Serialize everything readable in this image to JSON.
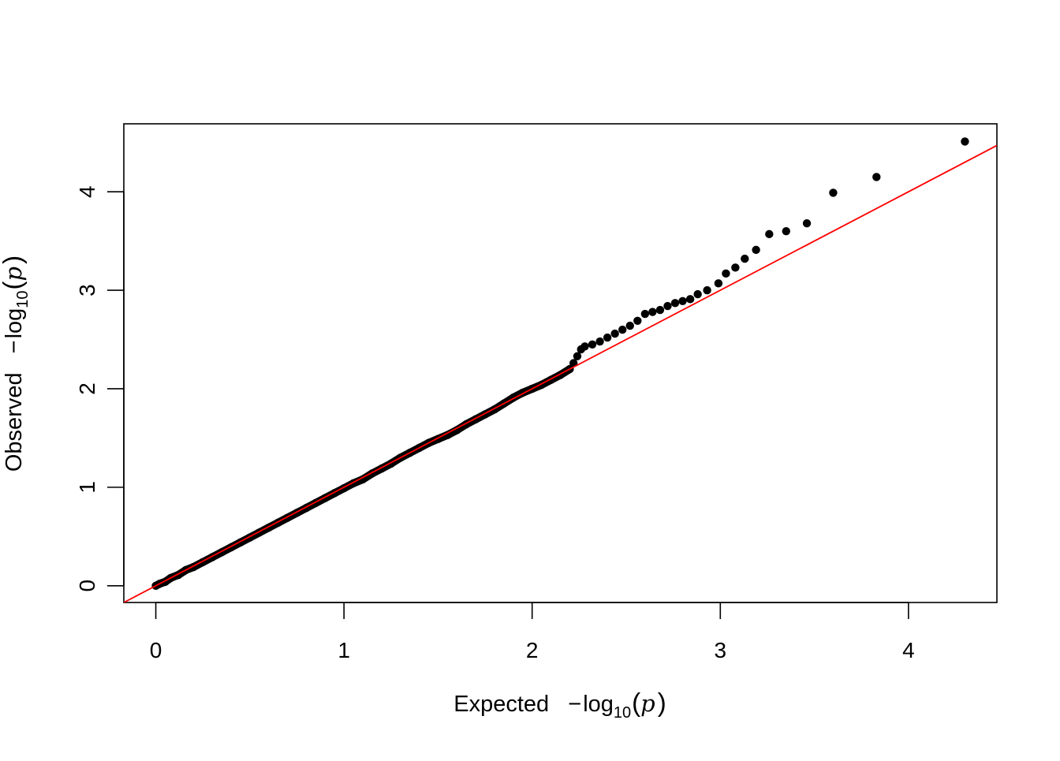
{
  "chart_data": {
    "type": "scatter",
    "title": "",
    "xlabel": {
      "prefix": "Expected",
      "minus": "−",
      "log": "log",
      "sub": "10",
      "open": "(",
      "var": "p",
      "close": ")"
    },
    "ylabel": {
      "prefix": "Observed",
      "minus": "−",
      "log": "log",
      "sub": "10",
      "open": "(",
      "var": "p",
      "close": ")"
    },
    "xlim": [
      -0.17,
      4.47
    ],
    "ylim": [
      -0.17,
      4.69
    ],
    "xticks": [
      0,
      1,
      2,
      3,
      4
    ],
    "yticks": [
      0,
      1,
      2,
      3,
      4
    ],
    "xtick_labels": [
      "0",
      "1",
      "2",
      "3",
      "4"
    ],
    "ytick_labels": [
      "0",
      "1",
      "2",
      "3",
      "4"
    ],
    "grid": false,
    "legend": "none",
    "reference_line": {
      "slope": 1,
      "intercept": 0,
      "color": "#ff0000"
    },
    "point_color": "#000000",
    "series": [
      {
        "points": [
          [
            0.0,
            0.0
          ],
          [
            0.02,
            0.02
          ],
          [
            0.05,
            0.04
          ],
          [
            0.08,
            0.08
          ],
          [
            0.12,
            0.11
          ],
          [
            0.16,
            0.16
          ],
          [
            0.2,
            0.19
          ],
          [
            0.25,
            0.24
          ],
          [
            0.3,
            0.29
          ],
          [
            0.35,
            0.34
          ],
          [
            0.4,
            0.39
          ],
          [
            0.45,
            0.44
          ],
          [
            0.5,
            0.49
          ],
          [
            0.55,
            0.54
          ],
          [
            0.6,
            0.59
          ],
          [
            0.65,
            0.64
          ],
          [
            0.7,
            0.69
          ],
          [
            0.75,
            0.74
          ],
          [
            0.8,
            0.79
          ],
          [
            0.85,
            0.84
          ],
          [
            0.9,
            0.89
          ],
          [
            0.95,
            0.94
          ],
          [
            1.0,
            0.99
          ],
          [
            1.05,
            1.04
          ],
          [
            1.1,
            1.08
          ],
          [
            1.15,
            1.14
          ],
          [
            1.2,
            1.19
          ],
          [
            1.25,
            1.24
          ],
          [
            1.3,
            1.3
          ],
          [
            1.35,
            1.35
          ],
          [
            1.4,
            1.4
          ],
          [
            1.45,
            1.45
          ],
          [
            1.5,
            1.49
          ],
          [
            1.55,
            1.53
          ],
          [
            1.6,
            1.58
          ],
          [
            1.65,
            1.64
          ],
          [
            1.7,
            1.69
          ],
          [
            1.75,
            1.74
          ],
          [
            1.8,
            1.79
          ],
          [
            1.85,
            1.85
          ],
          [
            1.9,
            1.91
          ],
          [
            1.95,
            1.96
          ],
          [
            2.0,
            2.0
          ],
          [
            2.05,
            2.04
          ],
          [
            2.1,
            2.09
          ],
          [
            2.15,
            2.14
          ],
          [
            2.2,
            2.2
          ],
          [
            2.22,
            2.26
          ],
          [
            2.24,
            2.33
          ],
          [
            2.26,
            2.4
          ],
          [
            2.28,
            2.43
          ],
          [
            2.32,
            2.45
          ],
          [
            2.36,
            2.48
          ],
          [
            2.4,
            2.52
          ],
          [
            2.44,
            2.56
          ],
          [
            2.48,
            2.6
          ],
          [
            2.52,
            2.64
          ],
          [
            2.56,
            2.69
          ],
          [
            2.6,
            2.76
          ],
          [
            2.64,
            2.78
          ],
          [
            2.68,
            2.8
          ],
          [
            2.72,
            2.84
          ],
          [
            2.76,
            2.87
          ],
          [
            2.8,
            2.89
          ],
          [
            2.84,
            2.91
          ],
          [
            2.88,
            2.96
          ],
          [
            2.93,
            3.0
          ],
          [
            2.99,
            3.07
          ],
          [
            3.03,
            3.17
          ],
          [
            3.08,
            3.23
          ],
          [
            3.13,
            3.32
          ],
          [
            3.19,
            3.41
          ],
          [
            3.26,
            3.57
          ],
          [
            3.35,
            3.6
          ],
          [
            3.46,
            3.68
          ],
          [
            3.6,
            3.99
          ],
          [
            3.83,
            4.15
          ],
          [
            4.3,
            4.51
          ]
        ]
      }
    ]
  }
}
